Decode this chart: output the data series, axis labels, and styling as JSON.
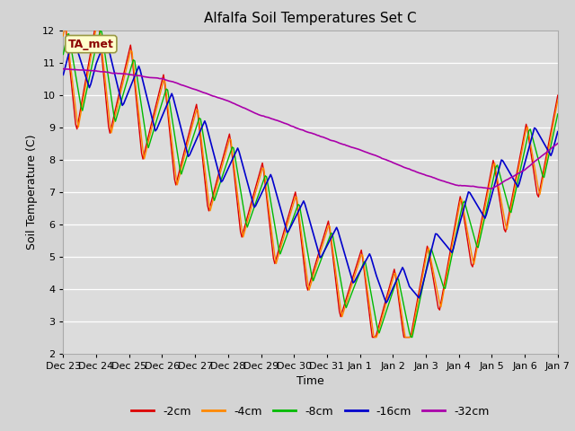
{
  "title": "Alfalfa Soil Temperatures Set C",
  "ylabel": "Soil Temperature (C)",
  "xlabel": "Time",
  "ylim": [
    2.0,
    12.0
  ],
  "yticks": [
    2.0,
    3.0,
    4.0,
    5.0,
    6.0,
    7.0,
    8.0,
    9.0,
    10.0,
    11.0,
    12.0
  ],
  "xtick_labels": [
    "Dec 23",
    "Dec 24",
    "Dec 25",
    "Dec 26",
    "Dec 27",
    "Dec 28",
    "Dec 29",
    "Dec 30",
    "Dec 31",
    "Jan 1",
    "Jan 2",
    "Jan 3",
    "Jan 4",
    "Jan 5",
    "Jan 6",
    "Jan 7"
  ],
  "colors": {
    "-2cm": "#dd0000",
    "-4cm": "#ff8800",
    "-8cm": "#00bb00",
    "-16cm": "#0000cc",
    "-32cm": "#aa00aa"
  },
  "annotation_text": "TA_met",
  "annotation_color": "#8b0000",
  "annotation_bg": "#ffffcc",
  "fig_bg": "#d4d4d4",
  "plot_bg": "#dcdcdc",
  "title_fontsize": 11,
  "axis_fontsize": 9,
  "tick_fontsize": 8,
  "legend_fontsize": 9
}
